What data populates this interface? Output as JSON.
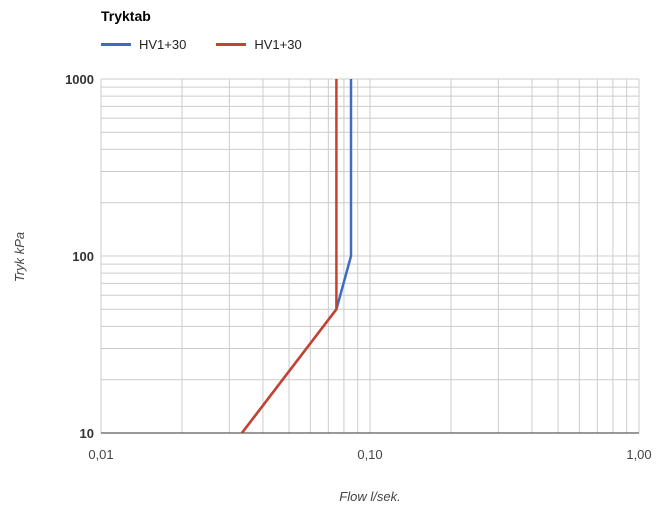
{
  "chart_data": {
    "type": "line",
    "title": "Tryktab",
    "xlabel": "Flow l/sek.",
    "ylabel": "Tryk kPa",
    "x_scale": "log",
    "y_scale": "log",
    "xlim": [
      0.01,
      1.0
    ],
    "ylim": [
      10,
      1000
    ],
    "x_ticks": [
      {
        "value": 0.01,
        "label": "0,01"
      },
      {
        "value": 0.1,
        "label": "0,10"
      },
      {
        "value": 1.0,
        "label": "1,00"
      }
    ],
    "y_ticks": [
      {
        "value": 10,
        "label": "10"
      },
      {
        "value": 100,
        "label": "100"
      },
      {
        "value": 1000,
        "label": "1000"
      }
    ],
    "grid": true,
    "legend_position": "top-left",
    "series": [
      {
        "name": "HV1+30",
        "color": "#3c6cc4",
        "points": [
          [
            0.0334,
            10
          ],
          [
            0.075,
            50
          ],
          [
            0.085,
            100
          ],
          [
            0.085,
            1000
          ]
        ]
      },
      {
        "name": "HV1+30",
        "color": "#c8412a",
        "points": [
          [
            0.0334,
            10
          ],
          [
            0.075,
            50
          ],
          [
            0.075,
            100
          ],
          [
            0.075,
            1000
          ]
        ]
      }
    ]
  }
}
